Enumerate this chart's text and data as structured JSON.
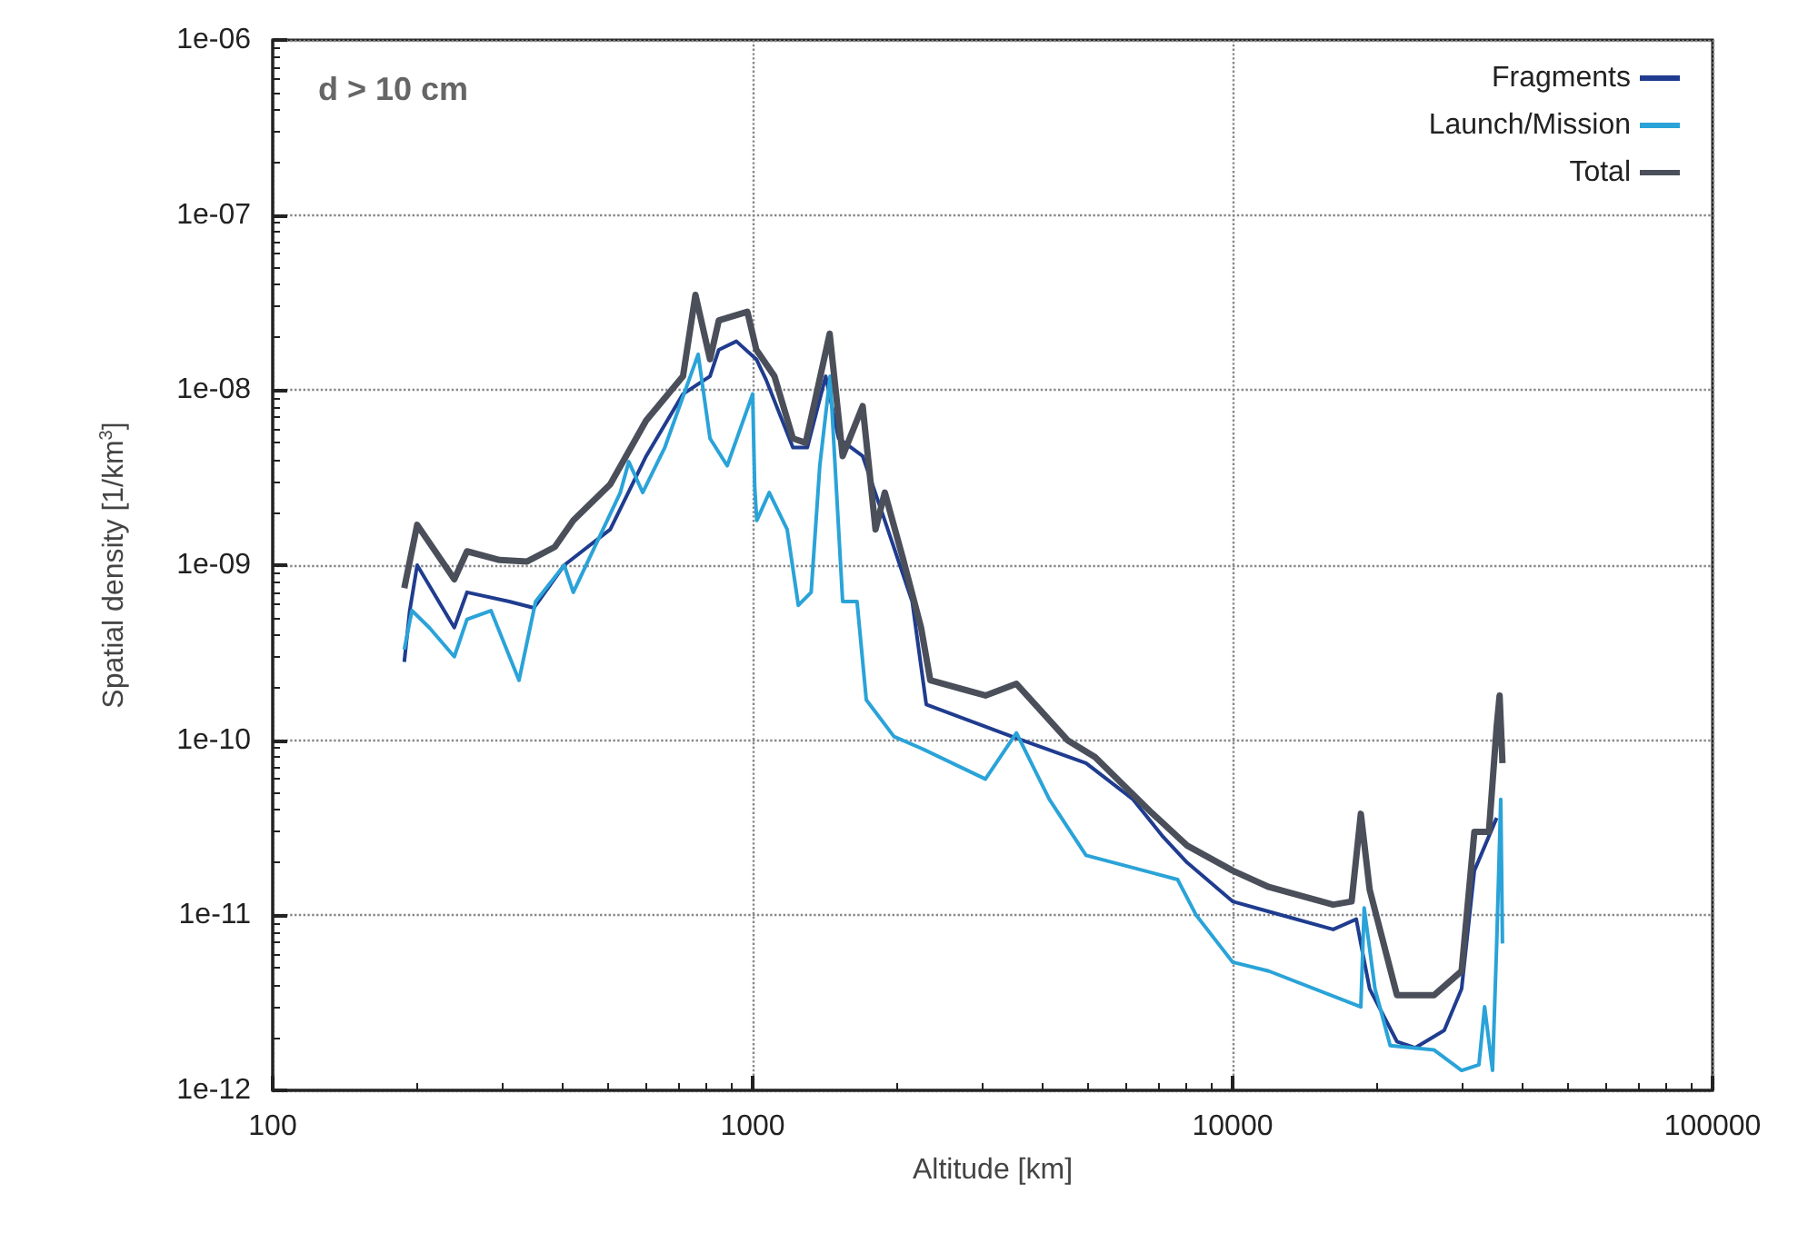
{
  "chart_data": {
    "type": "line",
    "xlabel": "Altitude [km]",
    "ylabel": "Spatial density [1/km$^{3}$]",
    "annotations": [
      "d > 10 cm"
    ],
    "log": "xy",
    "grid": true,
    "legend": "top right",
    "marker": "none",
    "line_style": "solid",
    "xlim": [
      100,
      100000
    ],
    "xticks": [
      100,
      1000,
      10000,
      100000
    ],
    "ylim": [
      1e-12,
      1e-06
    ],
    "yticks": [
      {
        "value": 1e-12,
        "label": "1e-12"
      },
      {
        "value": 1e-11,
        "label": "1e-11"
      },
      {
        "value": 1e-10,
        "label": "1e-10"
      },
      {
        "value": 1e-09,
        "label": "1e-09"
      },
      {
        "value": 1e-08,
        "label": "1e-08"
      },
      {
        "value": 1e-07,
        "label": "1e-07"
      },
      {
        "value": 1e-06,
        "label": "1e-06"
      }
    ],
    "series": [
      {
        "name": "Fragments",
        "color": "#1f3c8f",
        "x": [
          188,
          193,
          200,
          239,
          254,
          311,
          350,
          405,
          505,
          600,
          716,
          815,
          850,
          925,
          1018,
          1066,
          1213,
          1300,
          1420,
          1510,
          1695,
          1885,
          2150,
          2300,
          3470,
          4950,
          6200,
          7170,
          8040,
          10000,
          11900,
          16200,
          18100,
          18500,
          19300,
          22000,
          24000,
          27600,
          30000,
          31900,
          35500
        ],
        "values": [
          2.8e-10,
          5.5e-10,
          1e-09,
          4.4e-10,
          7e-10,
          6.2e-10,
          5.7e-10,
          1e-09,
          1.6e-09,
          4.2e-09,
          9.5e-09,
          1.2e-08,
          1.7e-08,
          1.9e-08,
          1.5e-08,
          1.15e-08,
          4.7e-09,
          4.7e-09,
          1.2e-08,
          5.3e-09,
          4.2e-09,
          1.8e-09,
          6.2e-10,
          1.6e-10,
          1.05e-10,
          7.4e-11,
          4.6e-11,
          2.8e-11,
          2e-11,
          1.2e-11,
          1.05e-11,
          8.3e-12,
          9.5e-12,
          6.9e-12,
          3.8e-12,
          1.9e-12,
          1.75e-12,
          2.2e-12,
          3.8e-12,
          1.8e-11,
          3.6e-11
        ]
      },
      {
        "name": "Launch/Mission",
        "color": "#2aa3d8",
        "x": [
          188,
          195,
          212,
          239,
          254,
          285,
          326,
          353,
          405,
          423,
          530,
          552,
          590,
          656,
          770,
          815,
          885,
          1000,
          1010,
          1020,
          1083,
          1180,
          1245,
          1324,
          1380,
          1450,
          1540,
          1650,
          1725,
          1970,
          2243,
          3055,
          3545,
          4150,
          4950,
          7680,
          8400,
          10000,
          11900,
          18500,
          18800,
          19800,
          21300,
          26300,
          30000,
          32600,
          33500,
          34800,
          35500,
          36200,
          36500
        ],
        "values": [
          3.3e-10,
          5.5e-10,
          4.4e-10,
          3e-10,
          4.9e-10,
          5.5e-10,
          2.2e-10,
          6.2e-10,
          1e-09,
          7e-10,
          2.6e-09,
          3.9e-09,
          2.6e-09,
          4.7e-09,
          1.6e-08,
          5.3e-09,
          3.7e-09,
          9.5e-09,
          2.8e-09,
          1.8e-09,
          2.6e-09,
          1.6e-09,
          5.9e-10,
          7e-10,
          3.7e-09,
          1.2e-08,
          6.2e-10,
          6.2e-10,
          1.7e-10,
          1.05e-10,
          9e-11,
          6e-11,
          1.1e-10,
          4.6e-11,
          2.2e-11,
          1.6e-11,
          1e-11,
          5.4e-12,
          4.8e-12,
          3e-12,
          1.1e-11,
          3.8e-12,
          1.8e-12,
          1.7e-12,
          1.3e-12,
          1.4e-12,
          3e-12,
          1.3e-12,
          6.9e-12,
          4.6e-11,
          6.9e-12
        ]
      },
      {
        "name": "Total",
        "color": "#4a4f5a",
        "x": [
          188,
          200,
          239,
          254,
          297,
          339,
          387,
          423,
          505,
          600,
          716,
          760,
          815,
          850,
          975,
          1018,
          1110,
          1213,
          1290,
          1447,
          1540,
          1695,
          1803,
          1885,
          2055,
          2243,
          2345,
          3055,
          3545,
          4530,
          5170,
          6750,
          8040,
          10000,
          11900,
          16200,
          17700,
          18500,
          19300,
          22000,
          26300,
          30000,
          31900,
          34200,
          35500,
          36000,
          36500
        ],
        "values": [
          7.4e-10,
          1.7e-09,
          8.3e-10,
          1.2e-09,
          1.07e-09,
          1.05e-09,
          1.27e-09,
          1.8e-09,
          2.9e-09,
          6.7e-09,
          1.2e-08,
          3.5e-08,
          1.5e-08,
          2.5e-08,
          2.8e-08,
          1.7e-08,
          1.2e-08,
          5.3e-09,
          5e-09,
          2.1e-08,
          4.2e-09,
          8.1e-09,
          1.6e-09,
          2.6e-09,
          1.1e-09,
          4.4e-10,
          2.2e-10,
          1.8e-10,
          2.1e-10,
          1e-10,
          8e-11,
          3.9e-11,
          2.5e-11,
          1.8e-11,
          1.45e-11,
          1.15e-11,
          1.2e-11,
          3.8e-11,
          1.4e-11,
          3.5e-12,
          3.5e-12,
          4.8e-12,
          3e-11,
          3e-11,
          1.2e-10,
          1.8e-10,
          7.4e-11
        ]
      }
    ]
  }
}
